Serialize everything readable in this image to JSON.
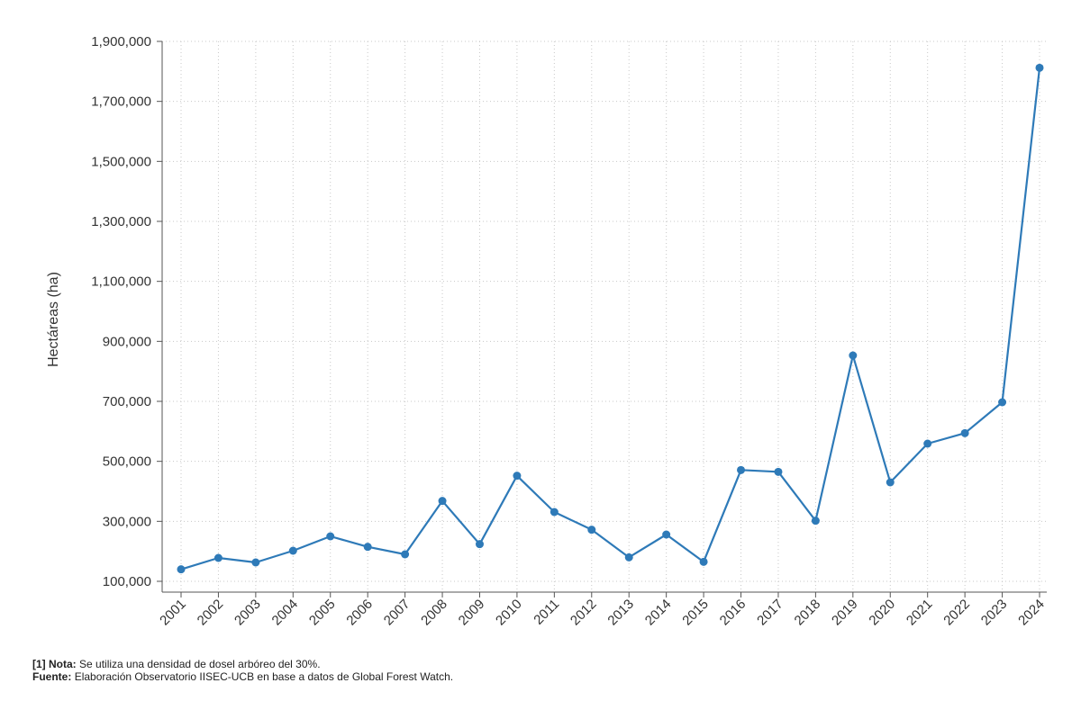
{
  "chart_data": {
    "type": "line",
    "title": "",
    "xlabel": "",
    "ylabel": "Hectáreas (ha)",
    "ylim": [
      100000,
      1900000
    ],
    "yticks": [
      100000,
      300000,
      500000,
      700000,
      900000,
      1100000,
      1300000,
      1500000,
      1700000,
      1900000
    ],
    "ytick_labels": [
      "100,000",
      "300,000",
      "500,000",
      "700,000",
      "900,000",
      "1,100,000",
      "1,300,000",
      "1,500,000",
      "1,700,000",
      "1,900,000"
    ],
    "categories": [
      "2001",
      "2002",
      "2003",
      "2004",
      "2005",
      "2006",
      "2007",
      "2008",
      "2009",
      "2010",
      "2011",
      "2012",
      "2013",
      "2014",
      "2015",
      "2016",
      "2017",
      "2018",
      "2019",
      "2020",
      "2021",
      "2022",
      "2023",
      "2024"
    ],
    "series": [
      {
        "values": [
          140000,
          178000,
          163000,
          202000,
          250000,
          215000,
          190000,
          368000,
          224000,
          452000,
          331000,
          272000,
          180000,
          256000,
          165000,
          471000,
          465000,
          302000,
          853000,
          430000,
          559000,
          594000,
          697000,
          1812000
        ],
        "color": "#2e7ab8"
      }
    ],
    "grid": true,
    "legend": "none"
  },
  "footer": {
    "note_label": "[1] Nota:",
    "note_text": "Se utiliza una densidad de dosel arbóreo del 30%.",
    "source_label": "Fuente:",
    "source_text": "Elaboración Observatorio IISEC-UCB en base a datos de Global Forest Watch."
  }
}
